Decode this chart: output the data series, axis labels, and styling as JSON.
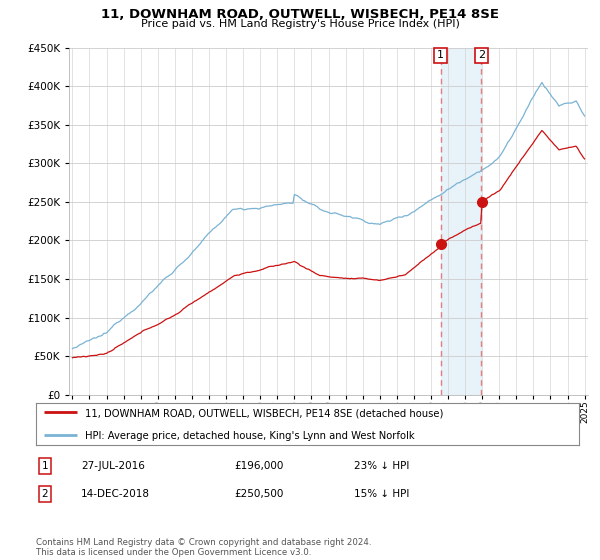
{
  "title": "11, DOWNHAM ROAD, OUTWELL, WISBECH, PE14 8SE",
  "subtitle": "Price paid vs. HM Land Registry's House Price Index (HPI)",
  "legend_line1": "11, DOWNHAM ROAD, OUTWELL, WISBECH, PE14 8SE (detached house)",
  "legend_line2": "HPI: Average price, detached house, King's Lynn and West Norfolk",
  "transaction1_date": "27-JUL-2016",
  "transaction1_price": "£196,000",
  "transaction1_pct": "23% ↓ HPI",
  "transaction2_date": "14-DEC-2018",
  "transaction2_price": "£250,500",
  "transaction2_pct": "15% ↓ HPI",
  "footnote": "Contains HM Land Registry data © Crown copyright and database right 2024.\nThis data is licensed under the Open Government Licence v3.0.",
  "hpi_color": "#7ab3d4",
  "price_color": "#cc1111",
  "vline_color": "#e08080",
  "shade_color": "#daeaf5",
  "ylim_min": 0,
  "ylim_max": 450000,
  "yticks": [
    0,
    50000,
    100000,
    150000,
    200000,
    250000,
    300000,
    350000,
    400000,
    450000
  ],
  "year_start": 1995,
  "year_end": 2025,
  "transaction1_year": 2016.57,
  "transaction2_year": 2018.96,
  "marker1_price": 196000,
  "marker2_price": 250500
}
